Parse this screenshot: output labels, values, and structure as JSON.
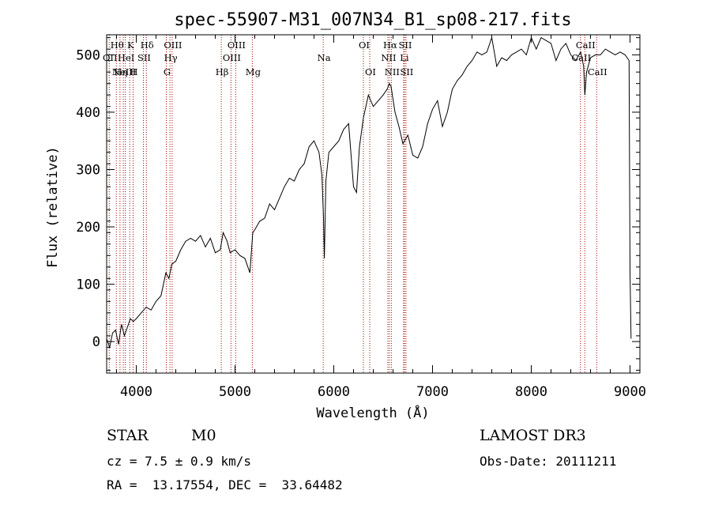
{
  "chart_data": {
    "type": "line",
    "title": "spec-55907-M31_007N34_B1_sp08-217.fits",
    "xlabel": "Wavelength (Å)",
    "ylabel": "Flux (relative)",
    "xlim": [
      3700,
      9100
    ],
    "ylim": [
      -55,
      535
    ],
    "xticks": [
      4000,
      5000,
      6000,
      7000,
      8000,
      9000
    ],
    "yticks": [
      0,
      100,
      200,
      300,
      400,
      500
    ],
    "series": [
      {
        "name": "flux",
        "x": [
          3700,
          3730,
          3760,
          3790,
          3820,
          3850,
          3880,
          3910,
          3940,
          3970,
          4000,
          4050,
          4100,
          4150,
          4200,
          4250,
          4300,
          4330,
          4360,
          4400,
          4450,
          4500,
          4550,
          4600,
          4650,
          4700,
          4750,
          4800,
          4850,
          4880,
          4920,
          4950,
          5000,
          5050,
          5100,
          5150,
          5180,
          5200,
          5250,
          5300,
          5350,
          5400,
          5450,
          5500,
          5550,
          5600,
          5650,
          5700,
          5750,
          5800,
          5850,
          5880,
          5895,
          5905,
          5920,
          5950,
          6000,
          6050,
          6100,
          6150,
          6200,
          6230,
          6260,
          6300,
          6350,
          6400,
          6450,
          6500,
          6540,
          6563,
          6580,
          6620,
          6660,
          6700,
          6750,
          6800,
          6850,
          6900,
          6950,
          7000,
          7050,
          7100,
          7150,
          7200,
          7250,
          7300,
          7350,
          7400,
          7450,
          7500,
          7550,
          7600,
          7630,
          7650,
          7700,
          7750,
          7800,
          7850,
          7900,
          7950,
          8000,
          8050,
          8100,
          8150,
          8200,
          8250,
          8300,
          8350,
          8400,
          8450,
          8500,
          8530,
          8542,
          8560,
          8600,
          8650,
          8700,
          8750,
          8800,
          8850,
          8900,
          8950,
          8990,
          9000,
          9010
        ],
        "y": [
          5,
          -10,
          15,
          20,
          -5,
          30,
          10,
          25,
          40,
          35,
          40,
          50,
          60,
          55,
          70,
          80,
          120,
          110,
          135,
          140,
          160,
          175,
          180,
          175,
          185,
          165,
          180,
          155,
          160,
          190,
          175,
          155,
          160,
          150,
          145,
          120,
          190,
          195,
          210,
          215,
          240,
          230,
          250,
          270,
          285,
          280,
          300,
          310,
          340,
          350,
          330,
          290,
          220,
          145,
          280,
          330,
          340,
          350,
          370,
          380,
          270,
          260,
          340,
          390,
          430,
          410,
          420,
          430,
          440,
          450,
          445,
          400,
          375,
          345,
          360,
          325,
          320,
          340,
          380,
          405,
          420,
          375,
          400,
          440,
          455,
          465,
          480,
          490,
          505,
          500,
          505,
          530,
          500,
          480,
          495,
          490,
          500,
          505,
          510,
          500,
          530,
          510,
          530,
          525,
          520,
          490,
          510,
          520,
          500,
          490,
          505,
          480,
          430,
          470,
          495,
          500,
          500,
          510,
          505,
          500,
          505,
          500,
          490,
          120,
          5
        ]
      }
    ],
    "spectral_lines": [
      {
        "wl": 3726,
        "name": "OII",
        "row": 1
      },
      {
        "wl": 3798,
        "name": "Hθ",
        "row": 0
      },
      {
        "wl": 3835,
        "name": "Hη",
        "row": 2
      },
      {
        "wl": 3869,
        "name": "NeIII",
        "row": 2
      },
      {
        "wl": 3889,
        "name": "HeI",
        "row": 1
      },
      {
        "wl": 3934,
        "name": "K",
        "row": 0
      },
      {
        "wl": 3968,
        "name": "H",
        "row": 2
      },
      {
        "wl": 4072,
        "name": "SII",
        "row": 1
      },
      {
        "wl": 4102,
        "name": "Hδ",
        "row": 0
      },
      {
        "wl": 4304,
        "name": "G",
        "row": 2
      },
      {
        "wl": 4341,
        "name": "Hγ",
        "row": 1
      },
      {
        "wl": 4363,
        "name": "OIII",
        "row": 0
      },
      {
        "wl": 4861,
        "name": "Hβ",
        "row": 2
      },
      {
        "wl": 4959,
        "name": "OIII",
        "row": 1
      },
      {
        "wl": 5007,
        "name": "OIII",
        "row": 0
      },
      {
        "wl": 5175,
        "name": "Mg",
        "row": 2
      },
      {
        "wl": 5893,
        "name": "Na",
        "row": 1
      },
      {
        "wl": 6300,
        "name": "OI",
        "row": 0
      },
      {
        "wl": 6364,
        "name": "OI",
        "row": 2
      },
      {
        "wl": 6548,
        "name": "NII",
        "row": 1
      },
      {
        "wl": 6563,
        "name": "Hα",
        "row": 0
      },
      {
        "wl": 6583,
        "name": "NII",
        "row": 2
      },
      {
        "wl": 6707,
        "name": "Li",
        "row": 1
      },
      {
        "wl": 6716,
        "name": "SII",
        "row": 0
      },
      {
        "wl": 6731,
        "name": "SII",
        "row": 2
      },
      {
        "wl": 8498,
        "name": "CaII",
        "row": 1
      },
      {
        "wl": 8542,
        "name": "CaII",
        "row": 0
      },
      {
        "wl": 8662,
        "name": "CaII",
        "row": 2
      }
    ]
  },
  "info": {
    "object_class": "STAR",
    "subclass": "M0",
    "survey": "LAMOST DR3",
    "cz": "cz = 7.5 ± 0.9 km/s",
    "obs_date": "Obs-Date: 20111211",
    "coords": "RA =  13.17554, DEC =  33.64482"
  },
  "colors": {
    "line_marker": "#aa0000",
    "spectrum": "#000000",
    "axes": "#000000"
  }
}
